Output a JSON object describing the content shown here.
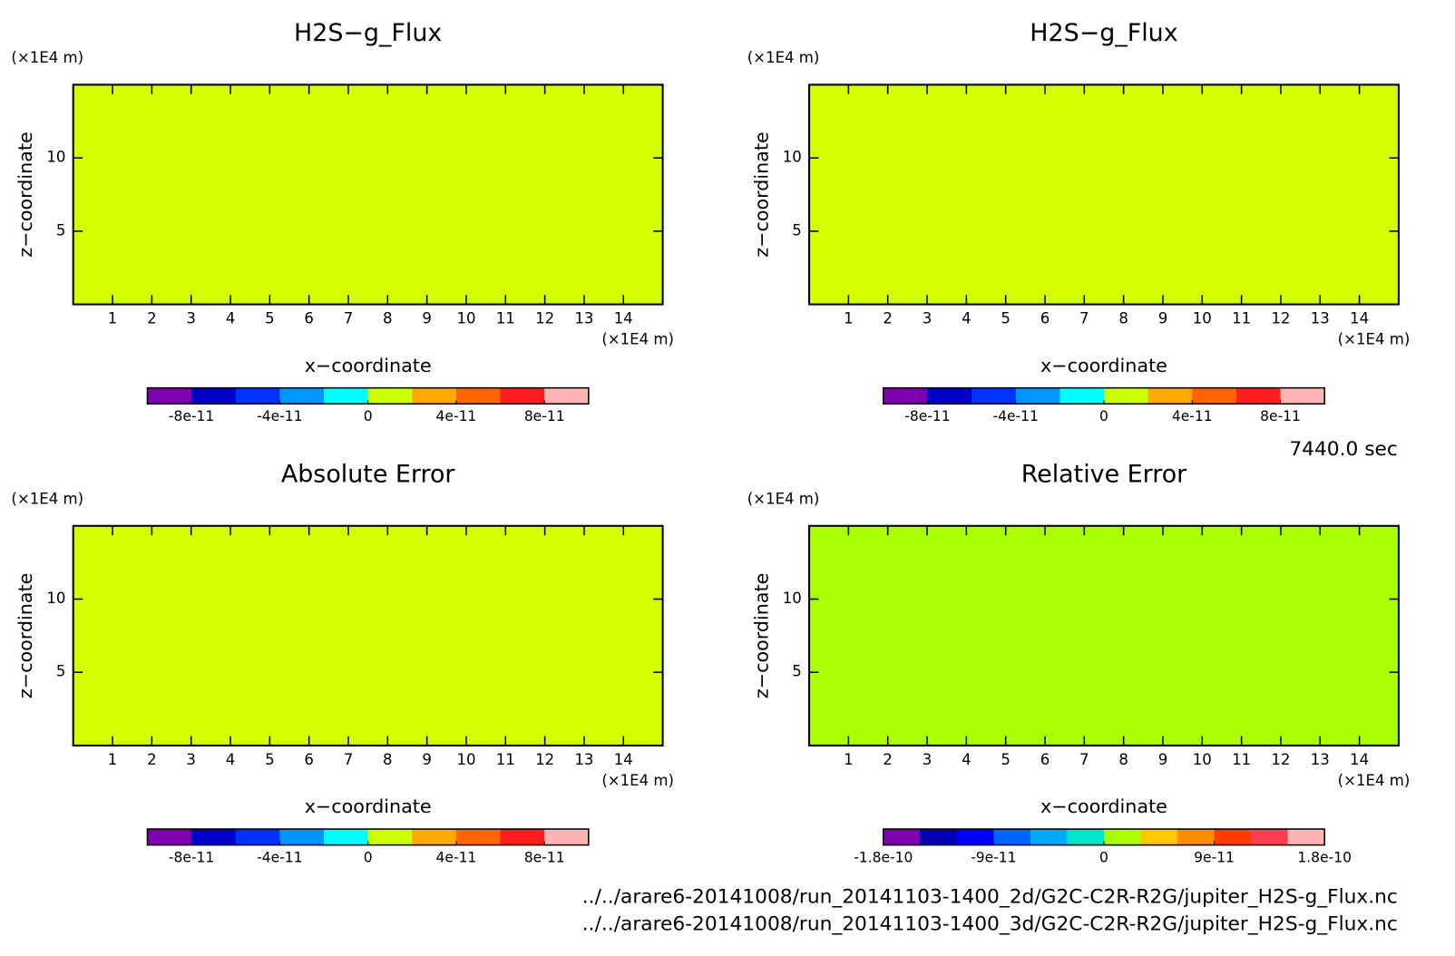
{
  "chart_data": [
    {
      "type": "contour",
      "title": "H2S−g_Flux",
      "xlabel": "x−coordinate",
      "ylabel": "z−coordinate",
      "x_unit": "(×1E4 m)",
      "y_unit": "(×1E4 m)",
      "xlim": [
        0,
        15
      ],
      "ylim": [
        0,
        15
      ],
      "xticks": [
        1,
        2,
        3,
        4,
        5,
        6,
        7,
        8,
        9,
        10,
        11,
        12,
        13,
        14
      ],
      "yticks": [
        5,
        10
      ],
      "fill": "#d4ff00",
      "colorbar": {
        "colors": [
          "#7f00b0",
          "#0000c8",
          "#0032ff",
          "#0096ff",
          "#00ffff",
          "#ccff00",
          "#ffaa00",
          "#ff6400",
          "#ff1e1e",
          "#ffb4b4"
        ],
        "lim": [
          -1e-10,
          1e-10
        ],
        "ticks": [
          -8e-11,
          -4e-11,
          0,
          4e-11,
          8e-11
        ]
      }
    },
    {
      "type": "contour",
      "title": "H2S−g_Flux",
      "xlabel": "x−coordinate",
      "ylabel": "z−coordinate",
      "x_unit": "(×1E4 m)",
      "y_unit": "(×1E4 m)",
      "xlim": [
        0,
        15
      ],
      "ylim": [
        0,
        15
      ],
      "xticks": [
        1,
        2,
        3,
        4,
        5,
        6,
        7,
        8,
        9,
        10,
        11,
        12,
        13,
        14
      ],
      "yticks": [
        5,
        10
      ],
      "fill": "#d4ff00",
      "colorbar": {
        "colors": [
          "#7f00b0",
          "#0000c8",
          "#0032ff",
          "#0096ff",
          "#00ffff",
          "#ccff00",
          "#ffaa00",
          "#ff6400",
          "#ff1e1e",
          "#ffb4b4"
        ],
        "lim": [
          -1e-10,
          1e-10
        ],
        "ticks": [
          -8e-11,
          -4e-11,
          0,
          4e-11,
          8e-11
        ]
      }
    },
    {
      "type": "contour",
      "title": "Absolute Error",
      "xlabel": "x−coordinate",
      "ylabel": "z−coordinate",
      "x_unit": "(×1E4 m)",
      "y_unit": "(×1E4 m)",
      "xlim": [
        0,
        15
      ],
      "ylim": [
        0,
        15
      ],
      "xticks": [
        1,
        2,
        3,
        4,
        5,
        6,
        7,
        8,
        9,
        10,
        11,
        12,
        13,
        14
      ],
      "yticks": [
        5,
        10
      ],
      "fill": "#d4ff00",
      "colorbar": {
        "colors": [
          "#7f00b0",
          "#0000c8",
          "#0032ff",
          "#0096ff",
          "#00ffff",
          "#ccff00",
          "#ffaa00",
          "#ff6400",
          "#ff1e1e",
          "#ffb4b4"
        ],
        "lim": [
          -1e-10,
          1e-10
        ],
        "ticks": [
          -8e-11,
          -4e-11,
          0,
          4e-11,
          8e-11
        ]
      }
    },
    {
      "type": "contour",
      "title": "Relative Error",
      "xlabel": "x−coordinate",
      "ylabel": "z−coordinate",
      "x_unit": "(×1E4 m)",
      "y_unit": "(×1E4 m)",
      "xlim": [
        0,
        15
      ],
      "ylim": [
        0,
        15
      ],
      "xticks": [
        1,
        2,
        3,
        4,
        5,
        6,
        7,
        8,
        9,
        10,
        11,
        12,
        13,
        14
      ],
      "yticks": [
        5,
        10
      ],
      "fill": "#aaff00",
      "colorbar": {
        "colors": [
          "#7f00b0",
          "#0000b4",
          "#0000ff",
          "#0064ff",
          "#00aaff",
          "#00e6c8",
          "#aaff00",
          "#ffc800",
          "#ff8c00",
          "#ff3c00",
          "#ff3c50",
          "#ffb4b4"
        ],
        "lim": [
          -1.8e-10,
          1.8e-10
        ],
        "ticks": [
          -1.8e-10,
          -9e-11,
          0,
          9e-11,
          1.8e-10
        ]
      }
    }
  ],
  "annotations": {
    "time": "7440.0 sec",
    "files": [
      "../../arare6-20141008/run_20141103-1400_2d/G2C-C2R-R2G/jupiter_H2S-g_Flux.nc",
      "../../arare6-20141008/run_20141103-1400_3d/G2C-C2R-R2G/jupiter_H2S-g_Flux.nc"
    ]
  }
}
